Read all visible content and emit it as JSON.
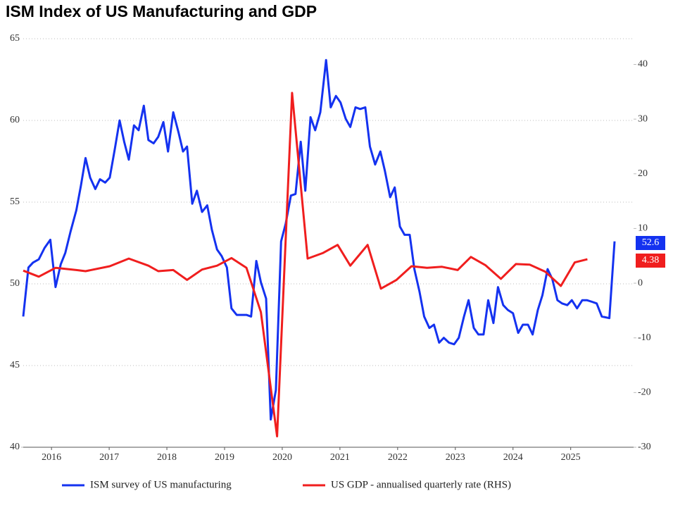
{
  "chart_data": {
    "type": "line",
    "title": "ISM Index of US Manufacturing and GDP",
    "xlim": [
      2015.51,
      2026.09
    ],
    "xticks": [
      2016,
      2017,
      2018,
      2019,
      2020,
      2021,
      2022,
      2023,
      2024,
      2025
    ],
    "ylim": [
      40,
      65
    ],
    "yticks": [
      40,
      45,
      50,
      55,
      60,
      65
    ],
    "y2lim": [
      -30,
      44.7
    ],
    "y2ticks": [
      -30,
      -20,
      -10,
      0,
      10,
      20,
      30,
      40
    ],
    "grid": true,
    "series": [
      {
        "name": "ISM survey of US manufacturing",
        "color": "#1432f0",
        "x": [
          2015.51,
          2015.6,
          2015.68,
          2015.78,
          2015.88,
          2015.98,
          2016.07,
          2016.16,
          2016.24,
          2016.33,
          2016.43,
          2016.51,
          2016.59,
          2016.67,
          2016.76,
          2016.84,
          2016.93,
          2017.01,
          2017.1,
          2017.18,
          2017.26,
          2017.34,
          2017.43,
          2017.51,
          2017.6,
          2017.68,
          2017.77,
          2017.85,
          2017.94,
          2018.02,
          2018.11,
          2018.2,
          2018.28,
          2018.35,
          2018.44,
          2018.52,
          2018.61,
          2018.7,
          2018.78,
          2018.87,
          2018.95,
          2019.04,
          2019.12,
          2019.21,
          2019.29,
          2019.38,
          2019.46,
          2019.55,
          2019.63,
          2019.72,
          2019.8,
          2019.89,
          2019.98,
          2020.06,
          2020.15,
          2020.23,
          2020.32,
          2020.4,
          2020.49,
          2020.57,
          2020.66,
          2020.76,
          2020.84,
          2020.93,
          2021.01,
          2021.1,
          2021.18,
          2021.27,
          2021.35,
          2021.44,
          2021.52,
          2021.61,
          2021.7,
          2021.78,
          2021.87,
          2021.95,
          2022.04,
          2022.12,
          2022.21,
          2022.29,
          2022.38,
          2022.46,
          2022.55,
          2022.63,
          2022.72,
          2022.8,
          2022.89,
          2022.98,
          2023.06,
          2023.15,
          2023.23,
          2023.32,
          2023.4,
          2023.49,
          2023.57,
          2023.66,
          2023.74,
          2023.83,
          2023.91,
          2024.0,
          2024.09,
          2024.17,
          2024.26,
          2024.34,
          2024.43,
          2024.51,
          2024.6,
          2024.68,
          2024.77,
          2024.85,
          2024.94,
          2025.02,
          2025.11,
          2025.2,
          2025.28,
          2025.37,
          2025.45,
          2025.54,
          2025.67,
          2025.76
        ],
        "values": [
          48.0,
          51.0,
          51.3,
          51.5,
          52.2,
          52.7,
          49.8,
          51.2,
          51.9,
          53.2,
          54.5,
          56.0,
          57.7,
          56.5,
          55.8,
          56.4,
          56.2,
          56.5,
          58.3,
          60.0,
          58.7,
          57.6,
          59.7,
          59.4,
          60.9,
          58.8,
          58.6,
          59.0,
          59.9,
          58.1,
          60.5,
          59.3,
          58.1,
          58.4,
          54.9,
          55.7,
          54.4,
          54.8,
          53.3,
          52.1,
          51.7,
          51.0,
          48.5,
          48.1,
          48.1,
          48.1,
          48.0,
          51.4,
          50.1,
          49.1,
          41.7,
          43.5,
          52.6,
          53.7,
          55.4,
          55.5,
          58.7,
          55.7,
          60.2,
          59.4,
          60.5,
          63.7,
          60.8,
          61.5,
          61.1,
          60.1,
          59.6,
          60.8,
          60.7,
          60.8,
          58.4,
          57.3,
          58.1,
          56.9,
          55.3,
          55.9,
          53.5,
          53.0,
          53.0,
          50.9,
          49.5,
          48.0,
          47.3,
          47.5,
          46.4,
          46.7,
          46.4,
          46.3,
          46.7,
          48.0,
          49.0,
          47.3,
          46.9,
          46.9,
          49.0,
          47.6,
          49.8,
          48.7,
          48.4,
          48.2,
          47.0,
          47.5,
          47.5,
          46.9,
          48.4,
          49.3,
          50.9,
          50.3,
          49.0,
          48.8,
          48.7,
          49.0,
          48.5,
          49.0,
          49.0,
          48.9,
          48.8,
          48.0,
          47.9,
          52.6
        ]
      },
      {
        "name": "US GDP - annualised quarterly rate (RHS)",
        "color": "#f01e1e",
        "axis": "y2",
        "x": [
          2015.51,
          2015.78,
          2016.07,
          2016.43,
          2016.59,
          2017.01,
          2017.34,
          2017.68,
          2017.85,
          2018.11,
          2018.35,
          2018.61,
          2018.87,
          2019.12,
          2019.38,
          2019.63,
          2019.91,
          2020.17,
          2020.44,
          2020.7,
          2020.96,
          2021.18,
          2021.48,
          2021.71,
          2021.98,
          2022.24,
          2022.51,
          2022.77,
          2023.04,
          2023.27,
          2023.52,
          2023.79,
          2024.05,
          2024.29,
          2024.56,
          2024.83,
          2025.07,
          2025.29
        ],
        "values": [
          2.3,
          1.2,
          2.8,
          2.4,
          2.2,
          3.1,
          4.5,
          3.2,
          2.2,
          2.4,
          0.6,
          2.5,
          3.2,
          4.6,
          2.8,
          -5.3,
          -28,
          34.8,
          4.5,
          5.5,
          7.0,
          3.2,
          7.0,
          -1.0,
          0.6,
          3.1,
          2.8,
          3.0,
          2.4,
          4.8,
          3.3,
          0.8,
          3.5,
          3.4,
          2.1,
          -0.5,
          3.8,
          4.38
        ]
      }
    ]
  }
}
